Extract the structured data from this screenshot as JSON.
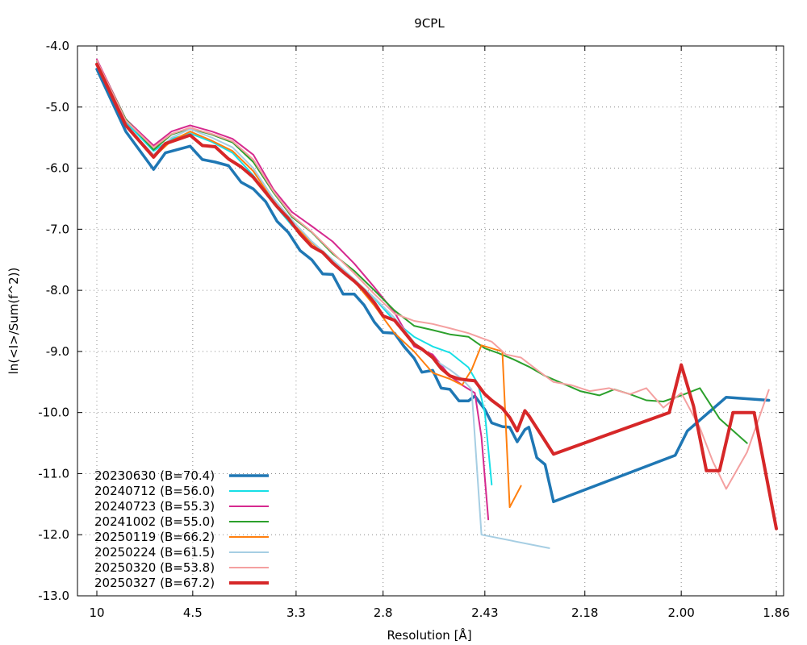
{
  "chart_data": {
    "type": "line",
    "title": "9CPL",
    "xlabel": "Resolution [Å]",
    "ylabel": "ln(<I>/Sum(f^2))",
    "x_axis_kind": "reciprocal-square resolution",
    "x_ticks": [
      {
        "value": 10,
        "label": "10"
      },
      {
        "value": 4.5,
        "label": "4.5"
      },
      {
        "value": 3.3,
        "label": "3.3"
      },
      {
        "value": 2.8,
        "label": "2.8"
      },
      {
        "value": 2.43,
        "label": "2.43"
      },
      {
        "value": 2.18,
        "label": "2.18"
      },
      {
        "value": 2.0,
        "label": "2.00"
      },
      {
        "value": 1.86,
        "label": "1.86"
      }
    ],
    "y_ticks": [
      {
        "value": -4,
        "label": "-4.0"
      },
      {
        "value": -5,
        "label": "-5.0"
      },
      {
        "value": -6,
        "label": "-6.0"
      },
      {
        "value": -7,
        "label": "-7.0"
      },
      {
        "value": -8,
        "label": "-8.0"
      },
      {
        "value": -9,
        "label": "-9.0"
      },
      {
        "value": -10,
        "label": "-10.0"
      },
      {
        "value": -11,
        "label": "-11.0"
      },
      {
        "value": -12,
        "label": "-12.0"
      },
      {
        "value": -13,
        "label": "-13.0"
      }
    ],
    "ylim": [
      -13,
      -4
    ],
    "grid": true,
    "legend_position": "bottom-left",
    "series": [
      {
        "name": "20230630 (B=70.4)",
        "color": "#1f77b4",
        "width": 3.5,
        "points": [
          [
            10.0,
            -4.38
          ],
          [
            6.76,
            -5.4
          ],
          [
            5.48,
            -6.02
          ],
          [
            5.12,
            -5.75
          ],
          [
            4.55,
            -5.64
          ],
          [
            4.33,
            -5.86
          ],
          [
            4.13,
            -5.9
          ],
          [
            3.95,
            -5.96
          ],
          [
            3.8,
            -6.23
          ],
          [
            3.67,
            -6.34
          ],
          [
            3.55,
            -6.55
          ],
          [
            3.45,
            -6.87
          ],
          [
            3.36,
            -7.05
          ],
          [
            3.27,
            -7.35
          ],
          [
            3.19,
            -7.5
          ],
          [
            3.12,
            -7.73
          ],
          [
            3.06,
            -7.74
          ],
          [
            3.0,
            -8.06
          ],
          [
            2.94,
            -8.06
          ],
          [
            2.89,
            -8.24
          ],
          [
            2.84,
            -8.52
          ],
          [
            2.8,
            -8.69
          ],
          [
            2.75,
            -8.7
          ],
          [
            2.71,
            -8.92
          ],
          [
            2.67,
            -9.11
          ],
          [
            2.64,
            -9.34
          ],
          [
            2.6,
            -9.31
          ],
          [
            2.57,
            -9.6
          ],
          [
            2.54,
            -9.62
          ],
          [
            2.51,
            -9.81
          ],
          [
            2.48,
            -9.81
          ],
          [
            2.46,
            -9.73
          ],
          [
            2.43,
            -9.95
          ],
          [
            2.41,
            -10.17
          ],
          [
            2.38,
            -10.23
          ],
          [
            2.36,
            -10.24
          ],
          [
            2.34,
            -10.48
          ],
          [
            2.32,
            -10.28
          ],
          [
            2.31,
            -10.24
          ],
          [
            2.29,
            -10.74
          ],
          [
            2.27,
            -10.85
          ],
          [
            2.25,
            -11.46
          ],
          [
            2.01,
            -10.7
          ],
          [
            1.99,
            -10.3
          ],
          [
            1.93,
            -9.75
          ],
          [
            1.87,
            -9.8
          ]
        ]
      },
      {
        "name": "20240712 (B=56.0)",
        "color": "#17dfe6",
        "width": 2,
        "points": [
          [
            10.0,
            -4.28
          ],
          [
            6.76,
            -5.25
          ],
          [
            5.48,
            -5.72
          ],
          [
            4.96,
            -5.52
          ],
          [
            4.55,
            -5.43
          ],
          [
            4.18,
            -5.57
          ],
          [
            3.9,
            -5.75
          ],
          [
            3.67,
            -6.12
          ],
          [
            3.48,
            -6.58
          ],
          [
            3.33,
            -6.94
          ],
          [
            3.19,
            -7.2
          ],
          [
            3.06,
            -7.5
          ],
          [
            2.94,
            -7.82
          ],
          [
            2.84,
            -8.13
          ],
          [
            2.75,
            -8.5
          ],
          [
            2.67,
            -8.76
          ],
          [
            2.6,
            -8.92
          ],
          [
            2.54,
            -9.02
          ],
          [
            2.48,
            -9.26
          ],
          [
            2.45,
            -9.54
          ],
          [
            2.43,
            -10.0
          ],
          [
            2.41,
            -11.18
          ]
        ]
      },
      {
        "name": "20240723 (B=55.3)",
        "color": "#d62a8f",
        "width": 2,
        "points": [
          [
            10.0,
            -4.22
          ],
          [
            6.76,
            -5.2
          ],
          [
            5.48,
            -5.63
          ],
          [
            4.96,
            -5.4
          ],
          [
            4.55,
            -5.3
          ],
          [
            4.18,
            -5.4
          ],
          [
            3.9,
            -5.52
          ],
          [
            3.67,
            -5.78
          ],
          [
            3.48,
            -6.35
          ],
          [
            3.33,
            -6.72
          ],
          [
            3.19,
            -6.95
          ],
          [
            3.06,
            -7.2
          ],
          [
            2.94,
            -7.56
          ],
          [
            2.84,
            -7.95
          ],
          [
            2.75,
            -8.36
          ],
          [
            2.67,
            -8.92
          ],
          [
            2.6,
            -9.05
          ],
          [
            2.54,
            -9.4
          ],
          [
            2.5,
            -9.55
          ],
          [
            2.46,
            -9.68
          ],
          [
            2.44,
            -10.4
          ],
          [
            2.42,
            -11.75
          ]
        ]
      },
      {
        "name": "20241002 (B=55.0)",
        "color": "#2ca02c",
        "width": 2,
        "points": [
          [
            10.0,
            -4.25
          ],
          [
            6.76,
            -5.2
          ],
          [
            5.48,
            -5.7
          ],
          [
            4.96,
            -5.45
          ],
          [
            4.55,
            -5.35
          ],
          [
            4.18,
            -5.45
          ],
          [
            3.9,
            -5.58
          ],
          [
            3.67,
            -5.9
          ],
          [
            3.48,
            -6.4
          ],
          [
            3.33,
            -6.8
          ],
          [
            3.19,
            -7.05
          ],
          [
            3.06,
            -7.4
          ],
          [
            2.94,
            -7.68
          ],
          [
            2.84,
            -8.0
          ],
          [
            2.75,
            -8.33
          ],
          [
            2.67,
            -8.58
          ],
          [
            2.6,
            -8.65
          ],
          [
            2.54,
            -8.72
          ],
          [
            2.48,
            -8.76
          ],
          [
            2.43,
            -8.95
          ],
          [
            2.39,
            -9.03
          ],
          [
            2.35,
            -9.13
          ],
          [
            2.31,
            -9.25
          ],
          [
            2.27,
            -9.4
          ],
          [
            2.23,
            -9.52
          ],
          [
            2.19,
            -9.65
          ],
          [
            2.15,
            -9.72
          ],
          [
            2.12,
            -9.62
          ],
          [
            2.09,
            -9.7
          ],
          [
            2.06,
            -9.8
          ],
          [
            2.03,
            -9.82
          ],
          [
            2.0,
            -9.72
          ],
          [
            1.97,
            -9.6
          ],
          [
            1.94,
            -10.1
          ],
          [
            1.9,
            -10.5
          ]
        ]
      },
      {
        "name": "20250119 (B=66.2)",
        "color": "#ff7f0e",
        "width": 2,
        "points": [
          [
            10.0,
            -4.3
          ],
          [
            6.76,
            -5.3
          ],
          [
            5.48,
            -5.82
          ],
          [
            4.96,
            -5.55
          ],
          [
            4.55,
            -5.4
          ],
          [
            4.18,
            -5.55
          ],
          [
            3.9,
            -5.72
          ],
          [
            3.67,
            -6.05
          ],
          [
            3.48,
            -6.55
          ],
          [
            3.33,
            -6.9
          ],
          [
            3.19,
            -7.22
          ],
          [
            3.06,
            -7.52
          ],
          [
            2.94,
            -7.85
          ],
          [
            2.84,
            -8.25
          ],
          [
            2.75,
            -8.7
          ],
          [
            2.67,
            -9.0
          ],
          [
            2.6,
            -9.35
          ],
          [
            2.54,
            -9.45
          ],
          [
            2.5,
            -9.55
          ],
          [
            2.47,
            -9.3
          ],
          [
            2.44,
            -8.9
          ],
          [
            2.41,
            -8.95
          ],
          [
            2.38,
            -9.0
          ],
          [
            2.36,
            -11.55
          ],
          [
            2.33,
            -11.2
          ]
        ]
      },
      {
        "name": "20250224 (B=61.5)",
        "color": "#a6cee3",
        "width": 2,
        "points": [
          [
            10.0,
            -4.32
          ],
          [
            6.76,
            -5.3
          ],
          [
            5.48,
            -5.78
          ],
          [
            4.96,
            -5.5
          ],
          [
            4.55,
            -5.36
          ],
          [
            4.18,
            -5.5
          ],
          [
            3.9,
            -5.66
          ],
          [
            3.67,
            -6.0
          ],
          [
            3.48,
            -6.5
          ],
          [
            3.33,
            -6.85
          ],
          [
            3.19,
            -7.2
          ],
          [
            3.06,
            -7.5
          ],
          [
            2.94,
            -7.82
          ],
          [
            2.84,
            -8.12
          ],
          [
            2.75,
            -8.45
          ],
          [
            2.67,
            -8.85
          ],
          [
            2.6,
            -9.12
          ],
          [
            2.54,
            -9.3
          ],
          [
            2.5,
            -9.45
          ],
          [
            2.47,
            -9.62
          ],
          [
            2.44,
            -12.0
          ],
          [
            2.26,
            -12.22
          ]
        ]
      },
      {
        "name": "20250320 (B=53.8)",
        "color": "#f4a0a0",
        "width": 2,
        "points": [
          [
            10.0,
            -4.24
          ],
          [
            6.76,
            -5.22
          ],
          [
            5.48,
            -5.66
          ],
          [
            4.96,
            -5.44
          ],
          [
            4.55,
            -5.34
          ],
          [
            4.18,
            -5.44
          ],
          [
            3.9,
            -5.56
          ],
          [
            3.67,
            -5.86
          ],
          [
            3.48,
            -6.38
          ],
          [
            3.33,
            -6.78
          ],
          [
            3.19,
            -7.04
          ],
          [
            3.06,
            -7.38
          ],
          [
            2.94,
            -7.72
          ],
          [
            2.84,
            -8.06
          ],
          [
            2.75,
            -8.38
          ],
          [
            2.67,
            -8.5
          ],
          [
            2.6,
            -8.55
          ],
          [
            2.54,
            -8.62
          ],
          [
            2.48,
            -8.7
          ],
          [
            2.44,
            -8.78
          ],
          [
            2.41,
            -8.84
          ],
          [
            2.37,
            -9.05
          ],
          [
            2.33,
            -9.1
          ],
          [
            2.29,
            -9.3
          ],
          [
            2.25,
            -9.5
          ],
          [
            2.21,
            -9.55
          ],
          [
            2.17,
            -9.65
          ],
          [
            2.13,
            -9.6
          ],
          [
            2.09,
            -9.7
          ],
          [
            2.06,
            -9.6
          ],
          [
            2.03,
            -9.92
          ],
          [
            2.0,
            -9.68
          ],
          [
            1.97,
            -10.25
          ],
          [
            1.95,
            -10.8
          ],
          [
            1.93,
            -11.25
          ],
          [
            1.9,
            -10.65
          ],
          [
            1.87,
            -9.63
          ]
        ]
      },
      {
        "name": "20250327 (B=67.2)",
        "color": "#d62728",
        "width": 4,
        "points": [
          [
            10.0,
            -4.3
          ],
          [
            6.76,
            -5.3
          ],
          [
            5.48,
            -5.82
          ],
          [
            5.12,
            -5.6
          ],
          [
            4.55,
            -5.46
          ],
          [
            4.33,
            -5.63
          ],
          [
            4.13,
            -5.65
          ],
          [
            3.95,
            -5.85
          ],
          [
            3.8,
            -5.98
          ],
          [
            3.67,
            -6.15
          ],
          [
            3.55,
            -6.4
          ],
          [
            3.45,
            -6.63
          ],
          [
            3.36,
            -6.82
          ],
          [
            3.27,
            -7.08
          ],
          [
            3.19,
            -7.28
          ],
          [
            3.12,
            -7.38
          ],
          [
            3.06,
            -7.55
          ],
          [
            3.0,
            -7.7
          ],
          [
            2.94,
            -7.85
          ],
          [
            2.89,
            -8.0
          ],
          [
            2.84,
            -8.2
          ],
          [
            2.8,
            -8.42
          ],
          [
            2.75,
            -8.49
          ],
          [
            2.71,
            -8.68
          ],
          [
            2.67,
            -8.88
          ],
          [
            2.64,
            -8.96
          ],
          [
            2.6,
            -9.1
          ],
          [
            2.57,
            -9.28
          ],
          [
            2.54,
            -9.4
          ],
          [
            2.51,
            -9.45
          ],
          [
            2.48,
            -9.47
          ],
          [
            2.46,
            -9.48
          ],
          [
            2.43,
            -9.7
          ],
          [
            2.41,
            -9.8
          ],
          [
            2.38,
            -9.93
          ],
          [
            2.36,
            -10.08
          ],
          [
            2.34,
            -10.3
          ],
          [
            2.32,
            -9.97
          ],
          [
            2.31,
            -10.05
          ],
          [
            2.25,
            -10.68
          ],
          [
            2.02,
            -10.0
          ],
          [
            2.0,
            -9.22
          ],
          [
            1.98,
            -9.9
          ],
          [
            1.96,
            -10.95
          ],
          [
            1.94,
            -10.95
          ],
          [
            1.92,
            -10.0
          ],
          [
            1.89,
            -10.0
          ],
          [
            1.86,
            -11.9
          ]
        ]
      }
    ]
  }
}
